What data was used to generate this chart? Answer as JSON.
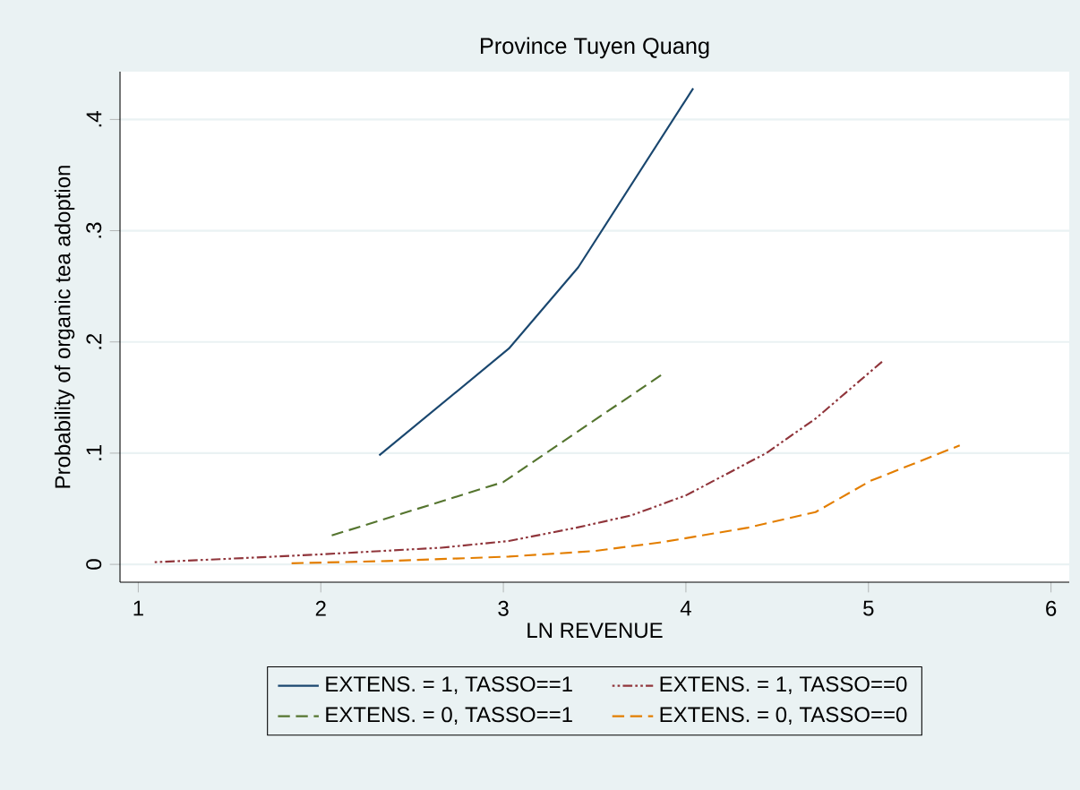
{
  "chart_data": {
    "type": "line",
    "title": "Province Tuyen Quang",
    "xlabel": "LN REVENUE",
    "ylabel": "Probability of organic tea adoption",
    "xlim": [
      0.9,
      6.1
    ],
    "ylim": [
      -0.016,
      0.443
    ],
    "xticks": [
      1,
      2,
      3,
      4,
      5,
      6
    ],
    "yticks": [
      0,
      {
        "value": 0.1,
        "label": ".1"
      },
      {
        "value": 0.2,
        "label": ".2"
      },
      {
        "value": 0.3,
        "label": ".3"
      },
      {
        "value": 0.4,
        "label": ".4"
      }
    ],
    "grid": "y",
    "legend": "bottom",
    "marker": "none",
    "series": [
      {
        "name": "EXTENS. = 1, TASSO==1",
        "color": "#1a476f",
        "line_style": "solid",
        "x": [
          2.32,
          3.03,
          3.41,
          4.04
        ],
        "values": [
          0.098,
          0.194,
          0.267,
          0.428
        ]
      },
      {
        "name": "EXTENS. = 1, TASSO==0",
        "color": "#90353b",
        "line_style": "dotted",
        "x": [
          1.09,
          1.62,
          2.0,
          2.66,
          3.03,
          3.4,
          3.7,
          4.0,
          4.44,
          4.71,
          5.08
        ],
        "values": [
          0.002,
          0.006,
          0.009,
          0.015,
          0.021,
          0.033,
          0.044,
          0.062,
          0.1,
          0.131,
          0.183
        ]
      },
      {
        "name": "EXTENS. = 0, TASSO==1",
        "color": "#55752f",
        "line_style": "dashed",
        "x": [
          2.06,
          3.0,
          3.88
        ],
        "values": [
          0.026,
          0.074,
          0.172
        ]
      },
      {
        "name": "EXTENS. = 0, TASSO==0",
        "color": "#e37e00",
        "line_style": "dashed",
        "x": [
          1.84,
          2.36,
          3.03,
          3.5,
          3.87,
          4.34,
          4.71,
          5.01,
          5.5
        ],
        "values": [
          0.001,
          0.003,
          0.007,
          0.012,
          0.02,
          0.033,
          0.047,
          0.075,
          0.107
        ]
      }
    ]
  }
}
